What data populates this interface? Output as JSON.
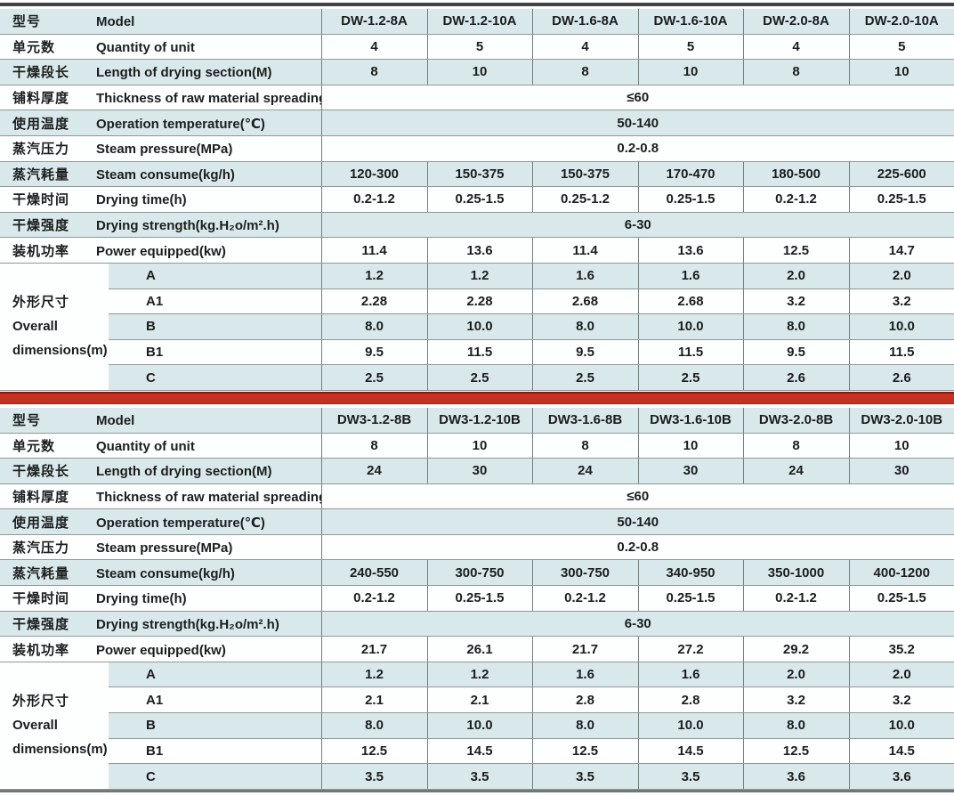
{
  "colors": {
    "divider_red": "#c43322",
    "row_blue": "#d9e9eb",
    "row_white": "#fdfefe",
    "line_dark": "#3f4445",
    "border_gray": "#8f9899"
  },
  "tables": [
    {
      "id": "a",
      "rows": [
        {
          "key": "model",
          "zh": "型号",
          "en": "Model",
          "values": [
            "DW-1.2-8A",
            "DW-1.2-10A",
            "DW-1.6-8A",
            "DW-1.6-10A",
            "DW-2.0-8A",
            "DW-2.0-10A"
          ]
        },
        {
          "key": "quantity-of-unit",
          "zh": "单元数",
          "en": "Quantity of unit",
          "values": [
            "4",
            "5",
            "4",
            "5",
            "4",
            "5"
          ]
        },
        {
          "key": "drying-section-length",
          "zh": "干燥段长",
          "en": "Length of drying section(M)",
          "values": [
            "8",
            "10",
            "8",
            "10",
            "8",
            "10"
          ]
        },
        {
          "key": "spreading-thickness",
          "zh": "铺料厚度",
          "en": "Thickness of raw material spreading(mm)",
          "merged": "≤60"
        },
        {
          "key": "operation-temperature",
          "zh": "使用温度",
          "en": "Operation temperature(℃)",
          "merged": "50-140"
        },
        {
          "key": "steam-pressure",
          "zh": "蒸汽压力",
          "en": "Steam pressure(MPa)",
          "merged": "0.2-0.8"
        },
        {
          "key": "steam-consume",
          "zh": "蒸汽耗量",
          "en": "Steam consume(kg/h)",
          "values": [
            "120-300",
            "150-375",
            "150-375",
            "170-470",
            "180-500",
            "225-600"
          ]
        },
        {
          "key": "drying-time",
          "zh": "干燥时间",
          "en": "Drying time(h)",
          "values": [
            "0.2-1.2",
            "0.25-1.5",
            "0.25-1.2",
            "0.25-1.5",
            "0.2-1.2",
            "0.25-1.5"
          ]
        },
        {
          "key": "drying-strength",
          "zh": "干燥强度",
          "en": "Drying strength(kg.H₂o/m².h)",
          "merged": "6-30"
        },
        {
          "key": "power-equipped",
          "zh": "装机功率",
          "en": "Power equipped(kw)",
          "values": [
            "11.4",
            "13.6",
            "11.4",
            "13.6",
            "12.5",
            "14.7"
          ]
        }
      ],
      "dims": {
        "zh": "外形尺寸",
        "en1": "Overall",
        "en2": "dimensions(m)",
        "rows": [
          {
            "label": "A",
            "values": [
              "1.2",
              "1.2",
              "1.6",
              "1.6",
              "2.0",
              "2.0"
            ]
          },
          {
            "label": "A1",
            "values": [
              "2.28",
              "2.28",
              "2.68",
              "2.68",
              "3.2",
              "3.2"
            ]
          },
          {
            "label": "B",
            "values": [
              "8.0",
              "10.0",
              "8.0",
              "10.0",
              "8.0",
              "10.0"
            ]
          },
          {
            "label": "B1",
            "values": [
              "9.5",
              "11.5",
              "9.5",
              "11.5",
              "9.5",
              "11.5"
            ]
          },
          {
            "label": "C",
            "values": [
              "2.5",
              "2.5",
              "2.5",
              "2.5",
              "2.6",
              "2.6"
            ]
          }
        ]
      }
    },
    {
      "id": "b",
      "rows": [
        {
          "key": "model",
          "zh": "型号",
          "en": "Model",
          "values": [
            "DW3-1.2-8B",
            "DW3-1.2-10B",
            "DW3-1.6-8B",
            "DW3-1.6-10B",
            "DW3-2.0-8B",
            "DW3-2.0-10B"
          ]
        },
        {
          "key": "quantity-of-unit",
          "zh": "单元数",
          "en": "Quantity of unit",
          "values": [
            "8",
            "10",
            "8",
            "10",
            "8",
            "10"
          ]
        },
        {
          "key": "drying-section-length",
          "zh": "干燥段长",
          "en": "Length of drying section(M)",
          "values": [
            "24",
            "30",
            "24",
            "30",
            "24",
            "30"
          ]
        },
        {
          "key": "spreading-thickness",
          "zh": "铺料厚度",
          "en": "Thickness of raw material spreading(mm)",
          "merged": "≤60"
        },
        {
          "key": "operation-temperature",
          "zh": "使用温度",
          "en": "Operation temperature(℃)",
          "merged": "50-140"
        },
        {
          "key": "steam-pressure",
          "zh": "蒸汽压力",
          "en": "Steam pressure(MPa)",
          "merged": "0.2-0.8"
        },
        {
          "key": "steam-consume",
          "zh": "蒸汽耗量",
          "en": "Steam consume(kg/h)",
          "values": [
            "240-550",
            "300-750",
            "300-750",
            "340-950",
            "350-1000",
            "400-1200"
          ]
        },
        {
          "key": "drying-time",
          "zh": "干燥时间",
          "en": "Drying time(h)",
          "values": [
            "0.2-1.2",
            "0.25-1.5",
            "0.2-1.2",
            "0.25-1.5",
            "0.2-1.2",
            "0.25-1.5"
          ]
        },
        {
          "key": "drying-strength",
          "zh": "干燥强度",
          "en": "Drying strength(kg.H₂o/m².h)",
          "merged": "6-30"
        },
        {
          "key": "power-equipped",
          "zh": "装机功率",
          "en": "Power equipped(kw)",
          "values": [
            "21.7",
            "26.1",
            "21.7",
            "27.2",
            "29.2",
            "35.2"
          ]
        }
      ],
      "dims": {
        "zh": "外形尺寸",
        "en1": "Overall",
        "en2": "dimensions(m)",
        "rows": [
          {
            "label": "A",
            "values": [
              "1.2",
              "1.2",
              "1.6",
              "1.6",
              "2.0",
              "2.0"
            ]
          },
          {
            "label": "A1",
            "values": [
              "2.1",
              "2.1",
              "2.8",
              "2.8",
              "3.2",
              "3.2"
            ]
          },
          {
            "label": "B",
            "values": [
              "8.0",
              "10.0",
              "8.0",
              "10.0",
              "8.0",
              "10.0"
            ]
          },
          {
            "label": "B1",
            "values": [
              "12.5",
              "14.5",
              "12.5",
              "14.5",
              "12.5",
              "14.5"
            ]
          },
          {
            "label": "C",
            "values": [
              "3.5",
              "3.5",
              "3.5",
              "3.5",
              "3.6",
              "3.6"
            ]
          }
        ]
      }
    }
  ]
}
